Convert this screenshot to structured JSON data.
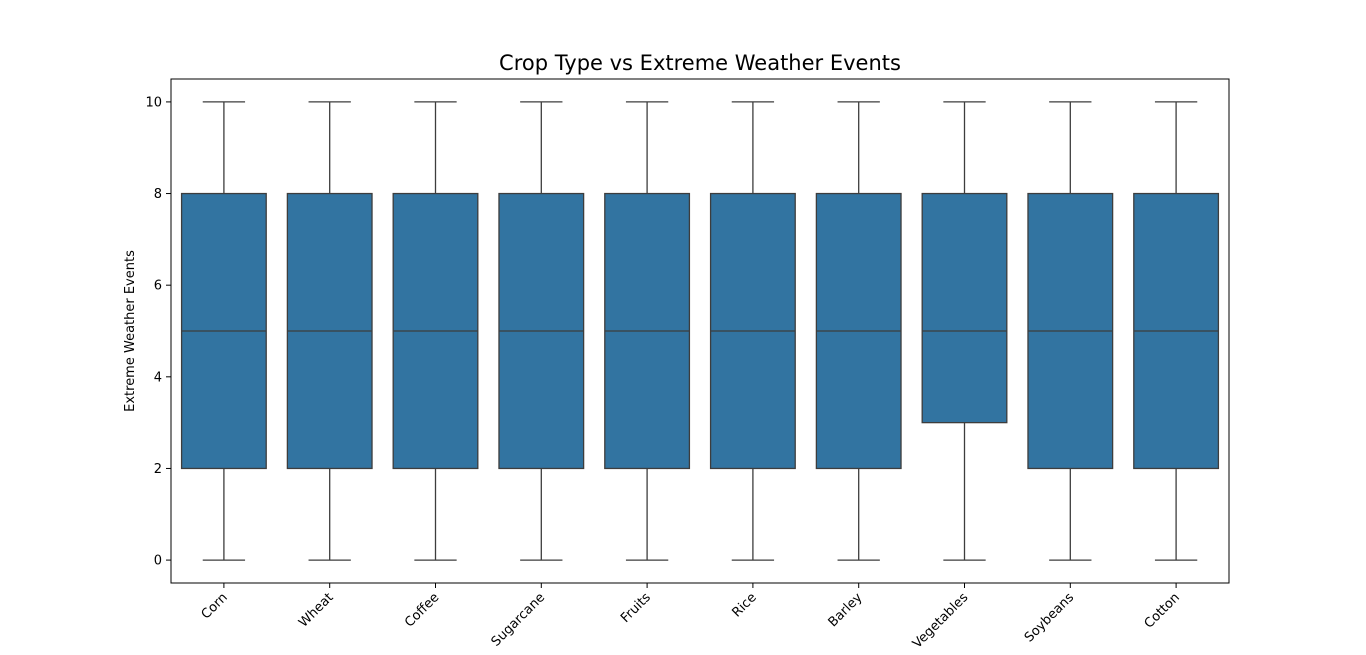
{
  "chart_data": {
    "type": "box",
    "title": "Crop Type vs Extreme Weather Events",
    "xlabel": "",
    "ylabel": "Extreme Weather Events",
    "ylim": [
      -0.5,
      10.5
    ],
    "yticks": [
      0,
      2,
      4,
      6,
      8,
      10
    ],
    "grid": false,
    "legend": "none",
    "box_color": "#3274a1",
    "line_color": "#3d3d3d",
    "categories": [
      "Corn",
      "Wheat",
      "Coffee",
      "Sugarcane",
      "Fruits",
      "Rice",
      "Barley",
      "Vegetables",
      "Soybeans",
      "Cotton"
    ],
    "boxes": [
      {
        "min": 0,
        "q1": 2,
        "median": 5,
        "q3": 8,
        "max": 10
      },
      {
        "min": 0,
        "q1": 2,
        "median": 5,
        "q3": 8,
        "max": 10
      },
      {
        "min": 0,
        "q1": 2,
        "median": 5,
        "q3": 8,
        "max": 10
      },
      {
        "min": 0,
        "q1": 2,
        "median": 5,
        "q3": 8,
        "max": 10
      },
      {
        "min": 0,
        "q1": 2,
        "median": 5,
        "q3": 8,
        "max": 10
      },
      {
        "min": 0,
        "q1": 2,
        "median": 5,
        "q3": 8,
        "max": 10
      },
      {
        "min": 0,
        "q1": 2,
        "median": 5,
        "q3": 8,
        "max": 10
      },
      {
        "min": 0,
        "q1": 3,
        "median": 5,
        "q3": 8,
        "max": 10
      },
      {
        "min": 0,
        "q1": 2,
        "median": 5,
        "q3": 8,
        "max": 10
      },
      {
        "min": 0,
        "q1": 2,
        "median": 5,
        "q3": 8,
        "max": 10
      }
    ]
  }
}
